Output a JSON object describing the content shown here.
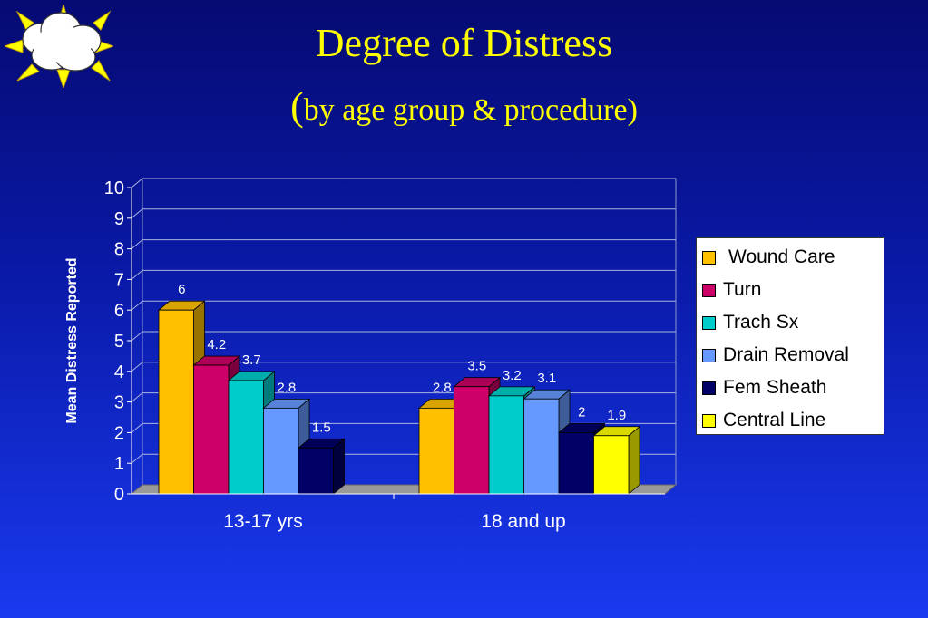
{
  "slide": {
    "title": "Degree of Distress",
    "subtitle_paren": "(",
    "subtitle_text": "by age group & procedure)"
  },
  "colors": {
    "background_top": "#050a72",
    "background_bottom": "#1a3af0",
    "title": "#ffff00",
    "axis_text": "#ffffff"
  },
  "icons": {
    "decoration": "sun-cloud-icon"
  },
  "chart_data": {
    "type": "bar",
    "style": "3d-clustered",
    "categories": [
      "13-17 yrs",
      "18 and up"
    ],
    "series": [
      {
        "name": "Wound Care",
        "color": "#ffc000",
        "values": [
          6,
          2.8
        ],
        "labels": [
          "6",
          "2.8"
        ]
      },
      {
        "name": "Turn",
        "color": "#cc0066",
        "values": [
          4.2,
          3.5
        ],
        "labels": [
          "4.2",
          "3.5"
        ]
      },
      {
        "name": "Trach Sx",
        "color": "#00cccc",
        "values": [
          3.7,
          3.2
        ],
        "labels": [
          "3.7",
          "3.2"
        ]
      },
      {
        "name": "Drain Removal",
        "color": "#6699ff",
        "values": [
          2.8,
          3.1
        ],
        "labels": [
          "2.8",
          "3.1"
        ]
      },
      {
        "name": "Fem Sheath",
        "color": "#000066",
        "values": [
          1.5,
          2
        ],
        "labels": [
          "1.5",
          "2"
        ]
      },
      {
        "name": "Central Line",
        "color": "#ffff00",
        "values": [
          null,
          1.9
        ],
        "labels": [
          null,
          "1.9"
        ]
      }
    ],
    "ylabel": "Mean Distress Reported",
    "xlabel": "",
    "ylim": [
      0,
      10
    ],
    "yticks": [
      "0",
      "1",
      "2",
      "3",
      "4",
      "5",
      "6",
      "7",
      "8",
      "9",
      "10"
    ],
    "grid": true,
    "legend": "right"
  }
}
